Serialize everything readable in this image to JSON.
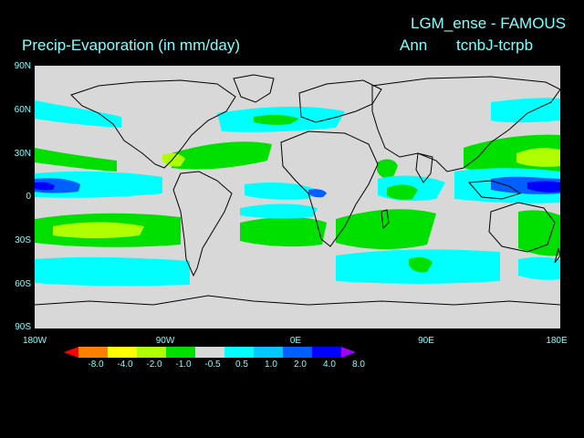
{
  "header": {
    "title_right": "LGM_ense - FAMOUS",
    "title_left": "Precip-Evaporation (in mm/day)",
    "season": "Ann",
    "runs": "tcnbJ-tcrpb"
  },
  "axes": {
    "lat_labels": [
      "90N",
      "60N",
      "30N",
      "0",
      "30S",
      "60S",
      "90S"
    ],
    "lon_labels": [
      "180W",
      "90W",
      "0E",
      "90E",
      "180E"
    ]
  },
  "colorbar": {
    "colors": [
      "#ff0000",
      "#ff8000",
      "#ffff00",
      "#b0ff00",
      "#00e000",
      "#d8d8d8",
      "#00ffff",
      "#00c8ff",
      "#0060ff",
      "#0000ff",
      "#a000ff"
    ],
    "labels": [
      "-8.0",
      "-4.0",
      "-2.0",
      "-1.0",
      "-0.5",
      "0.5",
      "1.0",
      "2.0",
      "4.0",
      "8.0"
    ]
  },
  "legend_colors": {
    "background": "#000000",
    "land_neutral": "#d8d8d8",
    "text": "#7fffff"
  }
}
